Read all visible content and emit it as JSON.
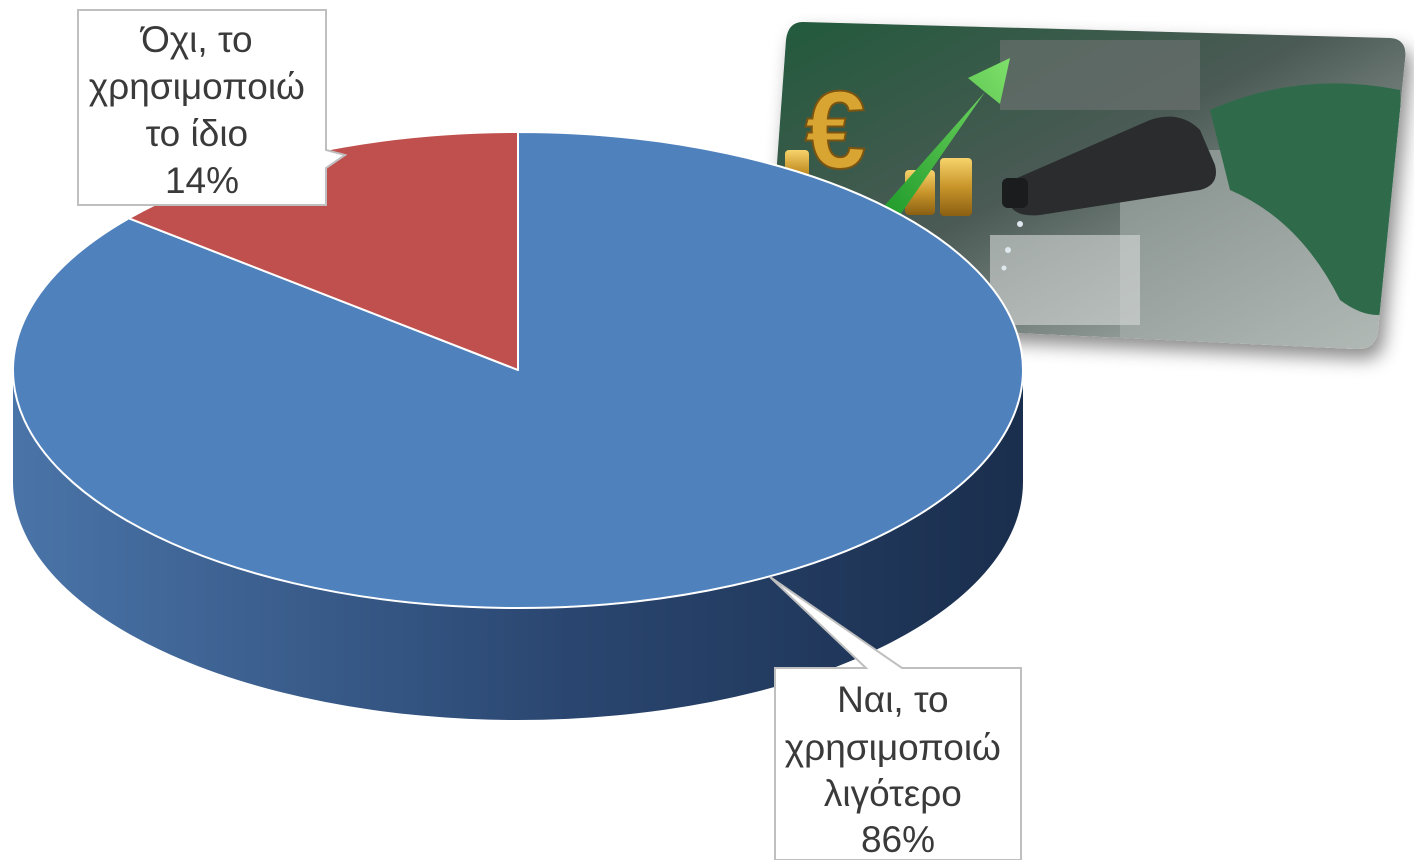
{
  "chart_data": {
    "type": "pie",
    "title": "",
    "three_d": true,
    "start_angle_deg": 0,
    "direction": "clockwise",
    "slices": [
      {
        "label_lines": [
          "Ναι, το",
          "χρησιμοποιώ",
          "λιγότερο"
        ],
        "value": 86,
        "value_label": "86%",
        "color": "#4F81BD",
        "side_color": "#26406A"
      },
      {
        "label_lines": [
          "Όχι, το",
          "χρησιμοποιώ",
          "το ίδιο"
        ],
        "value": 14,
        "value_label": "14%",
        "color": "#C0504D",
        "side_color": "#7A2E2C"
      }
    ],
    "legend": "none"
  },
  "decoration": {
    "photo_icon": "fuel-pump-price-rise-photo",
    "photo_symbol": "€"
  }
}
